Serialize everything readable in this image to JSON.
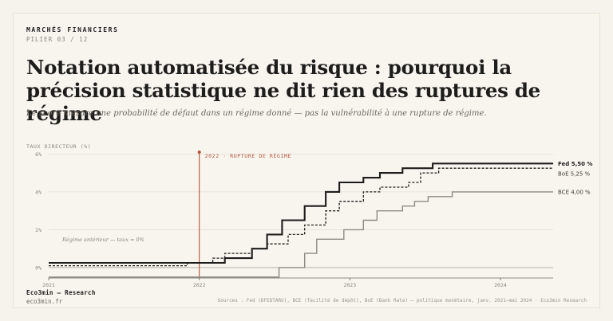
{
  "header": {
    "kicker": "MARCHÉS FINANCIERS",
    "pilier": "PILIER 03 / 12",
    "title": "Notation automatisée du risque : pourquoi la précision statistique ne dit rien des ruptures de régime",
    "subtitle": "Le score mesure une probabilité de défaut dans un régime donné — pas la vulnérabilité à une rupture de régime."
  },
  "chart_data": {
    "type": "line",
    "ylabel": "TAUX DIRECTEUR (%)",
    "xlabel": "",
    "ylim": [
      -0.55,
      6.1
    ],
    "xlim": [
      2021.0,
      2024.35
    ],
    "y_ticks": [
      "0%",
      "2%",
      "4%",
      "6%"
    ],
    "x_ticks": [
      "2021",
      "2022",
      "2023",
      "2024"
    ],
    "grid": true,
    "colors": {
      "fed": "#1d1d1b",
      "boe": "#1d1d1b",
      "bce": "#8e8a83",
      "rupture": "#b5523b"
    },
    "rupture": {
      "x": 2022.0,
      "label": "2022 · RUPTURE DE RÉGIME"
    },
    "regime_note": "Régime antérieur — taux ≈ 0%",
    "series": [
      {
        "name": "Fed 5,50 %",
        "style": "solid",
        "points": [
          [
            2021.0,
            0.25
          ],
          [
            2022.17,
            0.25
          ],
          [
            2022.17,
            0.5
          ],
          [
            2022.35,
            0.5
          ],
          [
            2022.35,
            1.0
          ],
          [
            2022.45,
            1.0
          ],
          [
            2022.45,
            1.75
          ],
          [
            2022.55,
            1.75
          ],
          [
            2022.55,
            2.5
          ],
          [
            2022.7,
            2.5
          ],
          [
            2022.7,
            3.25
          ],
          [
            2022.84,
            3.25
          ],
          [
            2022.84,
            4.0
          ],
          [
            2022.93,
            4.0
          ],
          [
            2022.93,
            4.5
          ],
          [
            2023.09,
            4.5
          ],
          [
            2023.09,
            4.75
          ],
          [
            2023.2,
            4.75
          ],
          [
            2023.2,
            5.0
          ],
          [
            2023.35,
            5.0
          ],
          [
            2023.35,
            5.25
          ],
          [
            2023.55,
            5.25
          ],
          [
            2023.55,
            5.5
          ],
          [
            2024.35,
            5.5
          ]
        ]
      },
      {
        "name": "BoE 5,25 %",
        "style": "dashed",
        "points": [
          [
            2021.0,
            0.1
          ],
          [
            2021.92,
            0.1
          ],
          [
            2021.92,
            0.25
          ],
          [
            2022.09,
            0.25
          ],
          [
            2022.09,
            0.5
          ],
          [
            2022.17,
            0.5
          ],
          [
            2022.17,
            0.75
          ],
          [
            2022.35,
            0.75
          ],
          [
            2022.35,
            1.0
          ],
          [
            2022.45,
            1.0
          ],
          [
            2022.45,
            1.25
          ],
          [
            2022.59,
            1.25
          ],
          [
            2022.59,
            1.75
          ],
          [
            2022.7,
            1.75
          ],
          [
            2022.7,
            2.25
          ],
          [
            2022.84,
            2.25
          ],
          [
            2022.84,
            3.0
          ],
          [
            2022.93,
            3.0
          ],
          [
            2022.93,
            3.5
          ],
          [
            2023.09,
            3.5
          ],
          [
            2023.09,
            4.0
          ],
          [
            2023.2,
            4.0
          ],
          [
            2023.2,
            4.25
          ],
          [
            2023.39,
            4.25
          ],
          [
            2023.39,
            4.5
          ],
          [
            2023.47,
            4.5
          ],
          [
            2023.47,
            5.0
          ],
          [
            2023.59,
            5.0
          ],
          [
            2023.59,
            5.25
          ],
          [
            2024.35,
            5.25
          ]
        ]
      },
      {
        "name": "BCE 4,00 %",
        "style": "solid-grey",
        "points": [
          [
            2021.0,
            -0.5
          ],
          [
            2022.53,
            -0.5
          ],
          [
            2022.53,
            0.0
          ],
          [
            2022.7,
            0.0
          ],
          [
            2022.7,
            0.75
          ],
          [
            2022.78,
            0.75
          ],
          [
            2022.78,
            1.5
          ],
          [
            2022.96,
            1.5
          ],
          [
            2022.96,
            2.0
          ],
          [
            2023.09,
            2.0
          ],
          [
            2023.09,
            2.5
          ],
          [
            2023.18,
            2.5
          ],
          [
            2023.18,
            3.0
          ],
          [
            2023.35,
            3.0
          ],
          [
            2023.35,
            3.25
          ],
          [
            2023.43,
            3.25
          ],
          [
            2023.43,
            3.5
          ],
          [
            2023.52,
            3.5
          ],
          [
            2023.52,
            3.75
          ],
          [
            2023.68,
            3.75
          ],
          [
            2023.68,
            4.0
          ],
          [
            2024.35,
            4.0
          ]
        ]
      }
    ]
  },
  "footer": {
    "brand": "Eco3min — Research",
    "url": "eco3min.fr",
    "sources": "Sources : Fed (DFEDTARU), BCE (facilité de dépôt), BoE (Bank Rate) — politique monétaire, janv. 2021–mai 2024 · Eco3min Research"
  }
}
